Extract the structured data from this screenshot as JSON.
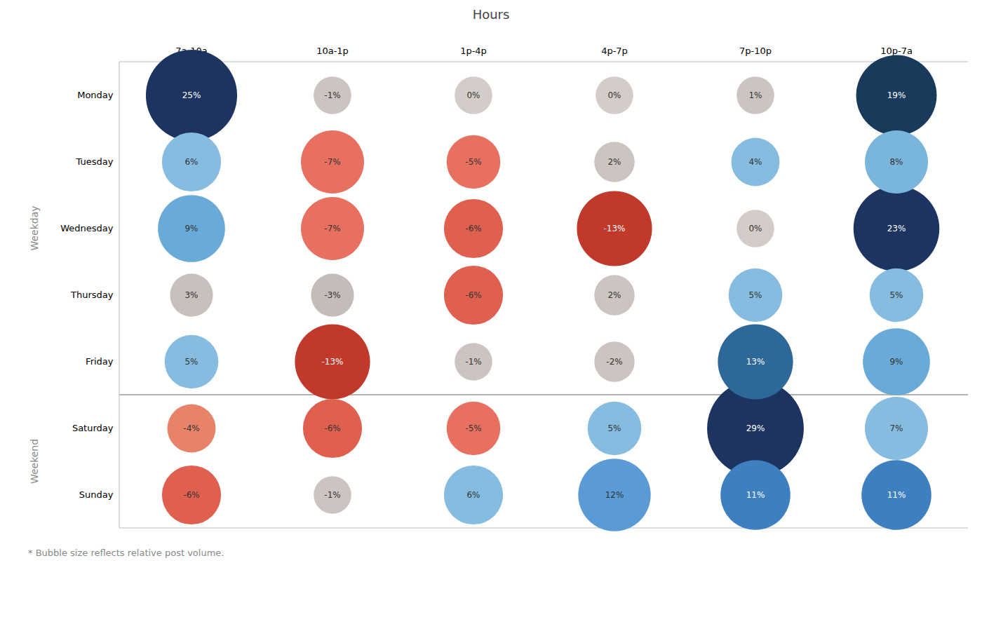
{
  "chart_data": {
    "type": "bubble",
    "title": "Hours",
    "categories": [
      "7a-10a",
      "10a-1p",
      "1p-4p",
      "4p-7p",
      "7p-10p",
      "10p-7a"
    ],
    "groups": [
      "Weekday",
      "Weekend"
    ],
    "data_labels": true,
    "rows": [
      {
        "name": "Monday",
        "group": "Weekday",
        "values": [
          25,
          -1,
          0,
          0,
          1,
          19
        ],
        "value_labels": [
          "25%",
          "-1%",
          "0%",
          "0%",
          "1%",
          "19%"
        ],
        "colors": [
          "#1d3461",
          "#ccc4c0",
          "#d4ccc8",
          "#d4ccc8",
          "#ccc4c0",
          "#1a3a5c"
        ],
        "sizes": [
          0.68,
          0.28,
          0.28,
          0.28,
          0.28,
          0.6
        ]
      },
      {
        "name": "Tuesday",
        "group": "Weekday",
        "values": [
          6,
          -7,
          -5,
          2,
          4,
          8
        ],
        "value_labels": [
          "6%",
          "-7%",
          "-5%",
          "2%",
          "4%",
          "8%"
        ],
        "colors": [
          "#85bce0",
          "#e87060",
          "#e87060",
          "#ccc4c0",
          "#85bce0",
          "#7ab5dc"
        ],
        "sizes": [
          0.44,
          0.47,
          0.4,
          0.3,
          0.36,
          0.47
        ]
      },
      {
        "name": "Wednesday",
        "group": "Weekday",
        "values": [
          9,
          -7,
          -6,
          -13,
          0,
          23
        ],
        "value_labels": [
          "9%",
          "-7%",
          "-6%",
          "-13%",
          "0%",
          "23%"
        ],
        "colors": [
          "#6aaad8",
          "#e87060",
          "#e06050",
          "#c0392b",
          "#d4ccc8",
          "#1d3461"
        ],
        "sizes": [
          0.5,
          0.47,
          0.44,
          0.56,
          0.28,
          0.64
        ]
      },
      {
        "name": "Thursday",
        "group": "Weekday",
        "values": [
          3,
          -3,
          -6,
          2,
          5,
          5
        ],
        "value_labels": [
          "3%",
          "-3%",
          "-6%",
          "2%",
          "5%",
          "5%"
        ],
        "colors": [
          "#c8c0bc",
          "#c4bcb8",
          "#e06050",
          "#ccc4c0",
          "#85bce0",
          "#85bce0"
        ],
        "sizes": [
          0.32,
          0.32,
          0.44,
          0.3,
          0.4,
          0.4
        ]
      },
      {
        "name": "Friday",
        "group": "Weekday",
        "values": [
          5,
          -13,
          -1,
          -2,
          13,
          9
        ],
        "value_labels": [
          "5%",
          "-13%",
          "-1%",
          "-2%",
          "13%",
          "9%"
        ],
        "colors": [
          "#85bce0",
          "#c0392b",
          "#ccc4c0",
          "#ccc4c0",
          "#2e6898",
          "#6aaad8"
        ],
        "sizes": [
          0.4,
          0.56,
          0.28,
          0.3,
          0.56,
          0.5
        ]
      },
      {
        "name": "Saturday",
        "group": "Weekend",
        "values": [
          -4,
          -6,
          -5,
          5,
          29,
          7
        ],
        "value_labels": [
          "-4%",
          "-6%",
          "-5%",
          "5%",
          "29%",
          "7%"
        ],
        "colors": [
          "#e8836a",
          "#e06050",
          "#e87060",
          "#85bce0",
          "#1d3461",
          "#85bce0"
        ],
        "sizes": [
          0.36,
          0.44,
          0.4,
          0.4,
          0.72,
          0.47
        ]
      },
      {
        "name": "Sunday",
        "group": "Weekend",
        "values": [
          -6,
          -1,
          6,
          12,
          11,
          11
        ],
        "value_labels": [
          "-6%",
          "-1%",
          "6%",
          "12%",
          "11%",
          "11%"
        ],
        "colors": [
          "#e06050",
          "#ccc4c0",
          "#85bce0",
          "#5b9bd5",
          "#3d7fbf",
          "#3d7fbf"
        ],
        "sizes": [
          0.44,
          0.28,
          0.44,
          0.54,
          0.52,
          0.52
        ]
      }
    ],
    "footnote": "* Bubble size reflects relative post volume."
  }
}
